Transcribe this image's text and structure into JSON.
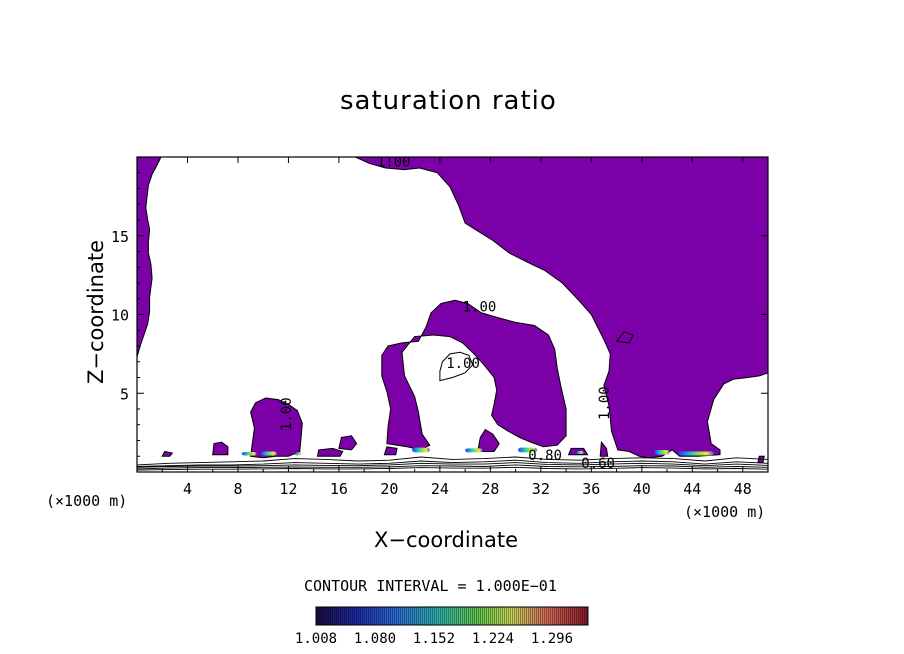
{
  "chart_data": {
    "type": "contour",
    "title": "saturation ratio",
    "xlabel": "X−coordinate",
    "ylabel": "Z−coordinate",
    "x_unit_left": "(×1000 m)",
    "x_unit_right": "(×1000 m)",
    "xlim": [
      0,
      50
    ],
    "ylim": [
      0,
      20
    ],
    "xticks": [
      4,
      8,
      12,
      16,
      20,
      24,
      28,
      32,
      36,
      40,
      44,
      48
    ],
    "yticks": [
      5,
      10,
      15
    ],
    "fill_level": 1.0,
    "fill_color": "#7b00a8",
    "contour_labels": [
      {
        "text": "1.00",
        "x": 19.0,
        "y": 19.4
      },
      {
        "text": "1.00",
        "x": 25.8,
        "y": 10.2
      },
      {
        "text": "1.00",
        "x": 24.5,
        "y": 6.6
      },
      {
        "text": "1.00",
        "x": 37.4,
        "y": 3.3
      },
      {
        "text": "1.00",
        "x": 12.2,
        "y": 2.6
      },
      {
        "text": "0.80",
        "x": 31.0,
        "y": 0.75
      },
      {
        "text": "0.60",
        "x": 35.2,
        "y": 0.25
      }
    ],
    "contour_interval_text": "CONTOUR INTERVAL = 1.000E−01",
    "colorbar": {
      "min": 1.008,
      "max": 1.34,
      "tick_labels": [
        "1.008",
        "1.080",
        "1.152",
        "1.224",
        "1.296"
      ]
    },
    "regions": [
      {
        "name": "upper-left-column",
        "poly": [
          [
            0,
            20
          ],
          [
            1.9,
            20
          ],
          [
            1.6,
            19.5
          ],
          [
            1.2,
            18.9
          ],
          [
            0.9,
            18.2
          ],
          [
            0.8,
            17.5
          ],
          [
            0.7,
            16.8
          ],
          [
            0.85,
            16.0
          ],
          [
            1.0,
            15.4
          ],
          [
            0.9,
            14.6
          ],
          [
            0.9,
            13.9
          ],
          [
            1.1,
            13.2
          ],
          [
            1.2,
            12.3
          ],
          [
            1.0,
            11.1
          ],
          [
            1.0,
            10.2
          ],
          [
            0.85,
            9.4
          ],
          [
            0.55,
            8.7
          ],
          [
            0.25,
            8.0
          ],
          [
            0,
            7.3
          ]
        ]
      },
      {
        "name": "upper-right-mass",
        "poly": [
          [
            17.3,
            20
          ],
          [
            18.4,
            19.6
          ],
          [
            19.7,
            19.3
          ],
          [
            21.2,
            19.2
          ],
          [
            22.4,
            19.3
          ],
          [
            23.8,
            19.0
          ],
          [
            24.8,
            18.1
          ],
          [
            25.5,
            16.9
          ],
          [
            26.0,
            15.8
          ],
          [
            26.8,
            15.4
          ],
          [
            28.2,
            14.7
          ],
          [
            29.5,
            13.9
          ],
          [
            31.0,
            13.3
          ],
          [
            32.3,
            12.8
          ],
          [
            33.7,
            12.0
          ],
          [
            35.0,
            10.9
          ],
          [
            36.0,
            10.0
          ],
          [
            37.0,
            8.4
          ],
          [
            37.5,
            7.5
          ],
          [
            37.4,
            6.4
          ],
          [
            37.0,
            5.5
          ],
          [
            37.4,
            4.2
          ],
          [
            37.6,
            2.6
          ],
          [
            38.1,
            1.4
          ],
          [
            39.0,
            1.3
          ],
          [
            39.8,
            1.0
          ],
          [
            40.6,
            0.9
          ],
          [
            41.6,
            1.0
          ],
          [
            42.4,
            1.4
          ],
          [
            43.0,
            1.0
          ],
          [
            44.4,
            1.0
          ],
          [
            46.2,
            1.1
          ],
          [
            46.2,
            1.4
          ],
          [
            45.5,
            1.8
          ],
          [
            45.2,
            3.2
          ],
          [
            45.7,
            4.6
          ],
          [
            46.5,
            5.6
          ],
          [
            47.3,
            5.9
          ],
          [
            48.4,
            6.0
          ],
          [
            49.3,
            6.1
          ],
          [
            50,
            6.3
          ],
          [
            50,
            20
          ]
        ]
      },
      {
        "name": "arch",
        "poly": [
          [
            19.8,
            1.8
          ],
          [
            21.4,
            1.6
          ],
          [
            22.5,
            1.4
          ],
          [
            23.2,
            1.7
          ],
          [
            22.6,
            2.4
          ],
          [
            22.3,
            3.8
          ],
          [
            22.0,
            4.8
          ],
          [
            21.2,
            6.1
          ],
          [
            21.0,
            7.6
          ],
          [
            22.0,
            8.6
          ],
          [
            23.5,
            8.7
          ],
          [
            24.8,
            8.6
          ],
          [
            25.8,
            8.2
          ],
          [
            26.7,
            7.5
          ],
          [
            27.5,
            6.8
          ],
          [
            28.3,
            6.0
          ],
          [
            28.5,
            5.2
          ],
          [
            28.3,
            4.3
          ],
          [
            28.1,
            3.6
          ],
          [
            28.6,
            3.0
          ],
          [
            29.4,
            2.6
          ],
          [
            30.3,
            2.2
          ],
          [
            31.2,
            1.9
          ],
          [
            32.2,
            1.6
          ],
          [
            33.3,
            1.7
          ],
          [
            34.0,
            2.3
          ],
          [
            34.0,
            4.0
          ],
          [
            33.6,
            5.4
          ],
          [
            33.3,
            6.6
          ],
          [
            33.1,
            7.8
          ],
          [
            32.6,
            8.7
          ],
          [
            31.5,
            9.3
          ],
          [
            30.0,
            9.5
          ],
          [
            28.6,
            9.8
          ],
          [
            27.3,
            10.1
          ],
          [
            26.2,
            10.7
          ],
          [
            25.2,
            10.9
          ],
          [
            24.1,
            10.7
          ],
          [
            23.3,
            10.1
          ],
          [
            22.9,
            9.2
          ],
          [
            22.3,
            8.3
          ],
          [
            21.0,
            8.2
          ],
          [
            19.9,
            8.0
          ],
          [
            19.4,
            7.4
          ],
          [
            19.4,
            6.1
          ],
          [
            19.8,
            5.1
          ],
          [
            20.1,
            4.0
          ],
          [
            19.9,
            2.9
          ]
        ]
      },
      {
        "name": "arch-hole",
        "fill": "#ffffff",
        "poly": [
          [
            24.0,
            5.8
          ],
          [
            25.0,
            6.0
          ],
          [
            26.0,
            6.3
          ],
          [
            26.6,
            6.8
          ],
          [
            26.3,
            7.4
          ],
          [
            25.6,
            7.6
          ],
          [
            24.8,
            7.5
          ],
          [
            24.2,
            7.0
          ],
          [
            24.0,
            6.4
          ]
        ]
      },
      {
        "name": "hill",
        "poly": [
          [
            9.0,
            1.0
          ],
          [
            9.3,
            2.8
          ],
          [
            9.0,
            3.8
          ],
          [
            9.4,
            4.4
          ],
          [
            10.2,
            4.7
          ],
          [
            11.2,
            4.6
          ],
          [
            12.0,
            4.3
          ],
          [
            12.7,
            3.9
          ],
          [
            13.1,
            3.1
          ],
          [
            13.0,
            2.2
          ],
          [
            12.9,
            1.3
          ],
          [
            12.0,
            1.0
          ],
          [
            11.0,
            1.0
          ],
          [
            10.0,
            0.9
          ]
        ]
      },
      {
        "name": "patch-1",
        "poly": [
          [
            27.0,
            1.3
          ],
          [
            27.2,
            2.2
          ],
          [
            27.6,
            2.7
          ],
          [
            28.2,
            2.4
          ],
          [
            28.7,
            1.8
          ],
          [
            28.3,
            1.3
          ]
        ]
      },
      {
        "name": "patch-2",
        "poly": [
          [
            6.0,
            1.1
          ],
          [
            6.1,
            1.8
          ],
          [
            6.7,
            1.9
          ],
          [
            7.2,
            1.6
          ],
          [
            7.2,
            1.1
          ]
        ]
      },
      {
        "name": "patch-3",
        "poly": [
          [
            14.3,
            1.0
          ],
          [
            14.4,
            1.4
          ],
          [
            15.5,
            1.5
          ],
          [
            16.3,
            1.3
          ],
          [
            16.1,
            1.0
          ]
        ]
      },
      {
        "name": "patch-4",
        "poly": [
          [
            16.0,
            1.5
          ],
          [
            16.2,
            2.2
          ],
          [
            17.0,
            2.3
          ],
          [
            17.4,
            1.8
          ],
          [
            17.0,
            1.4
          ]
        ]
      },
      {
        "name": "patch-5",
        "poly": [
          [
            2.0,
            1.0
          ],
          [
            2.2,
            1.3
          ],
          [
            2.8,
            1.2
          ],
          [
            2.6,
            1.0
          ]
        ]
      },
      {
        "name": "patch-6",
        "poly": [
          [
            34.2,
            1.1
          ],
          [
            34.4,
            1.5
          ],
          [
            35.4,
            1.5
          ],
          [
            35.7,
            1.1
          ]
        ]
      },
      {
        "name": "patch-7",
        "poly": [
          [
            36.7,
            1.0
          ],
          [
            36.8,
            1.9
          ],
          [
            37.2,
            1.5
          ],
          [
            37.3,
            1.0
          ]
        ]
      },
      {
        "name": "patch-8",
        "poly": [
          [
            49.2,
            0.6
          ],
          [
            49.3,
            1.0
          ],
          [
            49.7,
            1.0
          ],
          [
            49.6,
            0.6
          ]
        ]
      },
      {
        "name": "patch-9",
        "poly": [
          [
            38.0,
            8.3
          ],
          [
            38.6,
            8.9
          ],
          [
            39.3,
            8.7
          ],
          [
            39.0,
            8.2
          ]
        ]
      },
      {
        "name": "patch-10",
        "poly": [
          [
            19.6,
            1.1
          ],
          [
            19.8,
            1.6
          ],
          [
            20.6,
            1.5
          ],
          [
            20.5,
            1.1
          ]
        ]
      }
    ],
    "hotspots": [
      {
        "x": 8.3,
        "y": 1.05,
        "w": 1.2,
        "h": 0.22
      },
      {
        "x": 9.8,
        "y": 1.05,
        "w": 1.3,
        "h": 0.25
      },
      {
        "x": 12.5,
        "y": 1.05,
        "w": 0.5,
        "h": 0.2
      },
      {
        "x": 21.8,
        "y": 1.25,
        "w": 1.4,
        "h": 0.3
      },
      {
        "x": 26.0,
        "y": 1.25,
        "w": 1.4,
        "h": 0.25
      },
      {
        "x": 30.2,
        "y": 1.25,
        "w": 1.5,
        "h": 0.3
      },
      {
        "x": 34.8,
        "y": 1.15,
        "w": 0.6,
        "h": 0.18
      },
      {
        "x": 41.0,
        "y": 1.1,
        "w": 1.2,
        "h": 0.3
      },
      {
        "x": 42.9,
        "y": 1.05,
        "w": 2.8,
        "h": 0.25
      }
    ],
    "lower_contours": [
      {
        "level": "1.00",
        "y": [
          0.45,
          0.55,
          0.6,
          0.65,
          0.7,
          0.85,
          0.8,
          0.7,
          0.75,
          0.95,
          0.8,
          0.85,
          0.95,
          0.8,
          0.75,
          0.85,
          0.9,
          0.85,
          0.7,
          0.9,
          0.8
        ]
      },
      {
        "level": "0.90",
        "y": [
          0.35,
          0.4,
          0.45,
          0.45,
          0.5,
          0.6,
          0.55,
          0.5,
          0.55,
          0.7,
          0.6,
          0.65,
          0.75,
          0.6,
          0.55,
          0.65,
          0.7,
          0.65,
          0.5,
          0.65,
          0.55
        ]
      },
      {
        "level": "0.80",
        "y": [
          0.3,
          0.35,
          0.38,
          0.38,
          0.4,
          0.45,
          0.42,
          0.4,
          0.45,
          0.55,
          0.5,
          0.5,
          0.6,
          0.48,
          0.45,
          0.5,
          0.55,
          0.5,
          0.4,
          0.5,
          0.42
        ]
      },
      {
        "level": "0.70",
        "y": [
          0.2,
          0.25,
          0.28,
          0.28,
          0.3,
          0.32,
          0.3,
          0.3,
          0.33,
          0.4,
          0.38,
          0.35,
          0.45,
          0.35,
          0.33,
          0.35,
          0.4,
          0.38,
          0.3,
          0.35,
          0.3
        ]
      },
      {
        "level": "0.60",
        "y": [
          0.12,
          0.15,
          0.18,
          0.18,
          0.2,
          0.22,
          0.2,
          0.2,
          0.22,
          0.28,
          0.25,
          0.24,
          0.3,
          0.22,
          0.2,
          0.23,
          0.28,
          0.25,
          0.2,
          0.22,
          0.18
        ]
      }
    ]
  }
}
